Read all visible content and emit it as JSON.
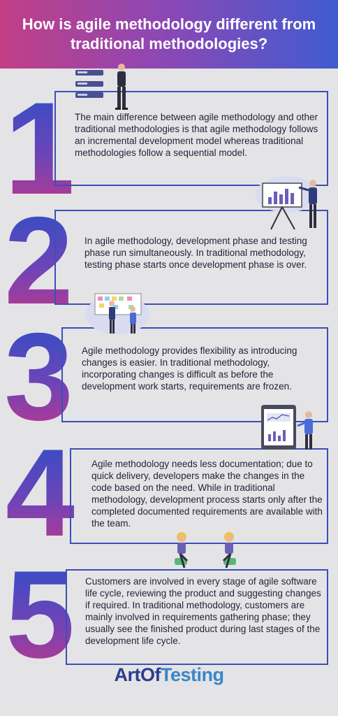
{
  "header": {
    "title": "How is agile methodology different from traditional methodologies?"
  },
  "colors": {
    "header_gradient": [
      "#c23f86",
      "#8a48b6",
      "#3f5cd0"
    ],
    "number_gradient": [
      "#2b4fc8",
      "#6d44b8",
      "#c2388a"
    ],
    "box_border": "#3c4fb7",
    "background": "#e4e4e6"
  },
  "points": [
    {
      "number": "1",
      "text": "The main difference between agile methodology and other traditional methodologies is that agile methodology follows an incremental development model whereas traditional methodologies follow a sequential model.",
      "illustration": "person-with-checklist-icon"
    },
    {
      "number": "2",
      "text": "In agile methodology, development phase and testing phase run simultaneously. In traditional methodology, testing phase starts once development phase is over.",
      "illustration": "presenter-with-chart-icon"
    },
    {
      "number": "3",
      "text": "Agile methodology provides flexibility as introducing changes is easier. In traditional methodology, incorporating changes is difficult as before the development work starts, requirements are frozen.",
      "illustration": "team-at-sticky-board-icon"
    },
    {
      "number": "4",
      "text": "Agile methodology needs less documentation; due to quick delivery, developers make the changes in the code based on the need. While in traditional methodology, development process starts only after the completed documented requirements are available with the team.",
      "illustration": "person-with-tablet-dashboard-icon"
    },
    {
      "number": "5",
      "text": "Customers are involved in every stage of agile software life cycle, reviewing the product and suggesting changes if required. In traditional methodology, customers are mainly involved in requirements gathering phase; they usually see the finished product during last stages of the development life cycle.",
      "illustration": "two-people-discussing-icon"
    }
  ],
  "footer": {
    "logo_part1": "ArtOf",
    "logo_part2": "Testing"
  }
}
